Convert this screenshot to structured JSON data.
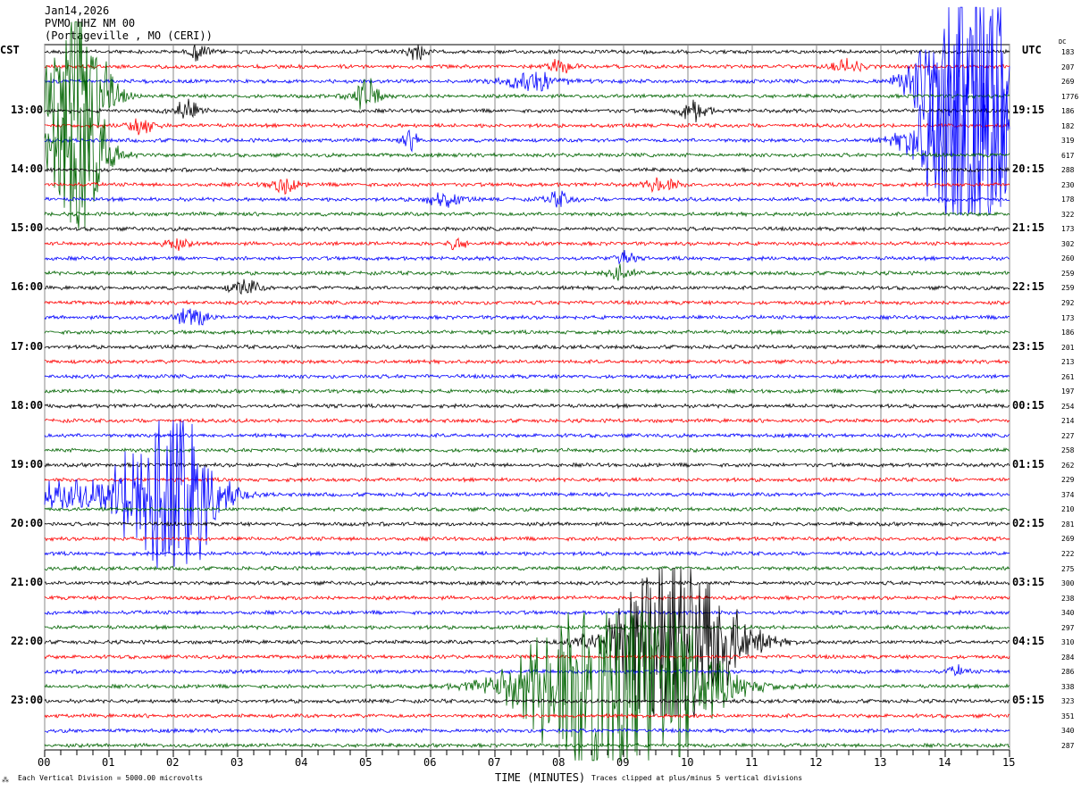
{
  "chart_data": {
    "type": "line",
    "title": "Jan14,2026",
    "station": "PVMO HHZ NM 00",
    "location": "(Portageville , MO (CERI))",
    "left_tz": "CST",
    "right_tz": "UTC",
    "dc_label": "DC",
    "xlabel": "TIME (MINUTES)",
    "xlim": [
      0,
      15
    ],
    "x_ticks": [
      "00",
      "01",
      "02",
      "03",
      "04",
      "05",
      "06",
      "07",
      "08",
      "09",
      "10",
      "11",
      "12",
      "13",
      "14",
      "15"
    ],
    "left_hours": [
      "13:00",
      "14:00",
      "15:00",
      "16:00",
      "17:00",
      "18:00",
      "19:00",
      "20:00",
      "21:00",
      "22:00",
      "23:00"
    ],
    "right_hours": [
      "19:15",
      "20:15",
      "21:15",
      "22:15",
      "23:15",
      "00:15",
      "01:15",
      "02:15",
      "03:15",
      "04:15",
      "05:15"
    ],
    "trace_colors": [
      "#000000",
      "#ff0000",
      "#0000ff",
      "#006400"
    ],
    "dc_values": [
      "183",
      "207",
      "269",
      "1776",
      "186",
      "182",
      "319",
      "617",
      "288",
      "230",
      "178",
      "322",
      "173",
      "302",
      "260",
      "259",
      "259",
      "292",
      "173",
      "186",
      "201",
      "213",
      "261",
      "197",
      "254",
      "214",
      "227",
      "258",
      "262",
      "229",
      "374",
      "210",
      "281",
      "269",
      "222",
      "275",
      "300",
      "238",
      "340",
      "297",
      "310",
      "284",
      "286",
      "338",
      "323",
      "351",
      "340",
      "287"
    ],
    "scale_note": "Each Vertical Division = 5000.00 microvolts",
    "clip_note": "Traces clipped at plus/minus 5 vertical divisions",
    "events": [
      [
        3,
        0.5,
        0.6,
        120
      ],
      [
        7,
        0.5,
        0.6,
        120
      ],
      [
        2,
        14.4,
        0.9,
        200
      ],
      [
        6,
        14.4,
        0.9,
        200
      ],
      [
        3,
        5.0,
        0.3,
        20
      ],
      [
        0,
        2.4,
        0.2,
        10
      ],
      [
        0,
        5.8,
        0.2,
        10
      ],
      [
        4,
        2.2,
        0.3,
        12
      ],
      [
        4,
        10.1,
        0.3,
        12
      ],
      [
        1,
        8.0,
        0.3,
        8
      ],
      [
        1,
        12.5,
        0.3,
        8
      ],
      [
        5,
        1.5,
        0.3,
        10
      ],
      [
        2,
        7.6,
        0.6,
        10
      ],
      [
        6,
        5.7,
        0.2,
        10
      ],
      [
        9,
        3.7,
        0.3,
        10
      ],
      [
        9,
        9.6,
        0.3,
        10
      ],
      [
        10,
        6.2,
        0.4,
        8
      ],
      [
        10,
        8.0,
        0.3,
        8
      ],
      [
        13,
        2.0,
        0.3,
        7
      ],
      [
        13,
        6.4,
        0.2,
        7
      ],
      [
        14,
        9.0,
        0.2,
        10
      ],
      [
        15,
        8.9,
        0.3,
        10
      ],
      [
        16,
        3.1,
        0.3,
        10
      ],
      [
        18,
        2.3,
        0.3,
        14
      ],
      [
        30,
        1.9,
        0.9,
        140
      ],
      [
        30,
        0.3,
        1.0,
        15
      ],
      [
        40,
        9.8,
        1.2,
        140
      ],
      [
        43,
        8.9,
        1.7,
        160
      ],
      [
        42,
        14.2,
        0.2,
        6
      ]
    ]
  }
}
